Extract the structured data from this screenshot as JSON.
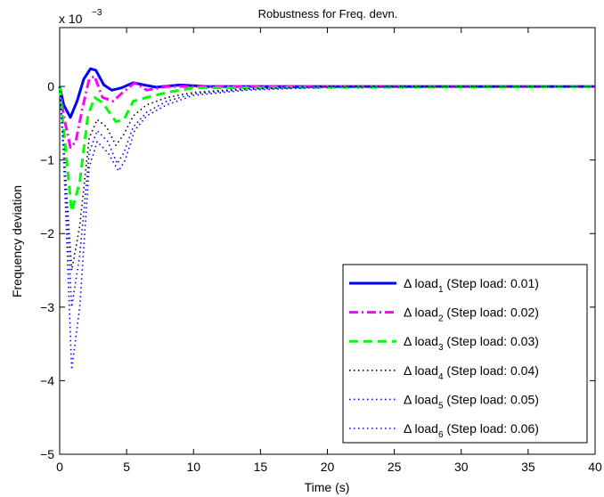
{
  "chart_data": {
    "type": "line",
    "title": "Robustness for Freq. devn.",
    "xlabel": "Time (s)",
    "ylabel": "Frequency deviation",
    "y_multiplier": {
      "base": "x 10",
      "exponent": "−3"
    },
    "xlim": [
      0,
      40
    ],
    "ylim": [
      -5,
      0.8
    ],
    "x_ticks": [
      "0",
      "5",
      "10",
      "15",
      "20",
      "25",
      "30",
      "35",
      "40"
    ],
    "y_ticks": [
      "−5",
      "−4",
      "−3",
      "−2",
      "−1",
      "0"
    ],
    "grid": false,
    "legend_position": "lower-right",
    "series": [
      {
        "name": "Δ load",
        "subscript": "1",
        "suffix": " (Step load: 0.01)",
        "color": "#0000ff",
        "style": "solid",
        "points": [
          [
            0,
            0
          ],
          [
            0.3,
            -0.25
          ],
          [
            0.8,
            -0.42
          ],
          [
            1.3,
            -0.2
          ],
          [
            1.8,
            0.1
          ],
          [
            2.3,
            0.24
          ],
          [
            2.7,
            0.22
          ],
          [
            3.3,
            0.02
          ],
          [
            3.9,
            -0.05
          ],
          [
            4.6,
            -0.02
          ],
          [
            5.5,
            0.05
          ],
          [
            6.3,
            0.02
          ],
          [
            7.2,
            -0.01
          ],
          [
            9,
            0.02
          ],
          [
            11,
            0
          ],
          [
            40,
            0
          ]
        ]
      },
      {
        "name": "Δ load",
        "subscript": "2",
        "suffix": " (Step load: 0.02)",
        "color": "#ff00ff",
        "style": "dashdot",
        "points": [
          [
            0,
            0
          ],
          [
            0.3,
            -0.4
          ],
          [
            0.8,
            -0.83
          ],
          [
            1.2,
            -0.75
          ],
          [
            1.7,
            -0.3
          ],
          [
            2.2,
            0.1
          ],
          [
            2.6,
            0.14
          ],
          [
            3.2,
            -0.15
          ],
          [
            4,
            -0.2
          ],
          [
            4.6,
            -0.1
          ],
          [
            5.6,
            0.05
          ],
          [
            6.5,
            -0.05
          ],
          [
            8,
            0
          ],
          [
            10,
            0
          ],
          [
            40,
            0
          ]
        ]
      },
      {
        "name": "Δ load",
        "subscript": "3",
        "suffix": " (Step load: 0.03)",
        "color": "#00ff00",
        "style": "dashed",
        "points": [
          [
            0,
            0
          ],
          [
            0.3,
            -0.6
          ],
          [
            0.9,
            -1.7
          ],
          [
            1.5,
            -1.3
          ],
          [
            2.1,
            -0.4
          ],
          [
            2.6,
            -0.15
          ],
          [
            3.2,
            -0.22
          ],
          [
            4.2,
            -0.48
          ],
          [
            4.8,
            -0.45
          ],
          [
            5.5,
            -0.2
          ],
          [
            6.5,
            -0.15
          ],
          [
            8,
            -0.08
          ],
          [
            10,
            -0.02
          ],
          [
            40,
            0
          ]
        ]
      },
      {
        "name": "Δ load",
        "subscript": "4",
        "suffix": " (Step load: 0.04)",
        "color": "#000000",
        "style": "dotted",
        "points": [
          [
            0,
            0
          ],
          [
            0.3,
            -0.8
          ],
          [
            0.9,
            -2.5
          ],
          [
            1.5,
            -1.9
          ],
          [
            2.2,
            -0.7
          ],
          [
            2.8,
            -0.45
          ],
          [
            3.5,
            -0.55
          ],
          [
            4.2,
            -0.8
          ],
          [
            4.8,
            -0.65
          ],
          [
            5.5,
            -0.4
          ],
          [
            6.5,
            -0.25
          ],
          [
            8,
            -0.15
          ],
          [
            10,
            -0.08
          ],
          [
            14,
            -0.03
          ],
          [
            20,
            0
          ],
          [
            40,
            0
          ]
        ]
      },
      {
        "name": "Δ load",
        "subscript": "5",
        "suffix": " (Step load: 0.05)",
        "color": "#0000ff",
        "style": "dotted",
        "points": [
          [
            0,
            0
          ],
          [
            0.3,
            -0.9
          ],
          [
            0.9,
            -3.0
          ],
          [
            1.5,
            -2.3
          ],
          [
            2.2,
            -0.9
          ],
          [
            2.8,
            -0.6
          ],
          [
            3.6,
            -0.75
          ],
          [
            4.3,
            -1.05
          ],
          [
            4.8,
            -0.9
          ],
          [
            5.5,
            -0.55
          ],
          [
            6.5,
            -0.35
          ],
          [
            8,
            -0.2
          ],
          [
            10,
            -0.1
          ],
          [
            14,
            -0.04
          ],
          [
            20,
            0
          ],
          [
            40,
            0
          ]
        ]
      },
      {
        "name": "Δ load",
        "subscript": "6",
        "suffix": " (Step load: 0.06)",
        "color": "#0000ff",
        "style": "dotted",
        "points": [
          [
            0,
            0
          ],
          [
            0.3,
            -1.0
          ],
          [
            0.9,
            -3.85
          ],
          [
            1.5,
            -3.0
          ],
          [
            2.2,
            -1.1
          ],
          [
            2.8,
            -0.75
          ],
          [
            3.6,
            -0.9
          ],
          [
            4.4,
            -1.15
          ],
          [
            4.9,
            -1.0
          ],
          [
            5.6,
            -0.6
          ],
          [
            6.5,
            -0.4
          ],
          [
            8,
            -0.25
          ],
          [
            10,
            -0.12
          ],
          [
            14,
            -0.05
          ],
          [
            20,
            -0.01
          ],
          [
            40,
            0
          ]
        ]
      }
    ]
  }
}
